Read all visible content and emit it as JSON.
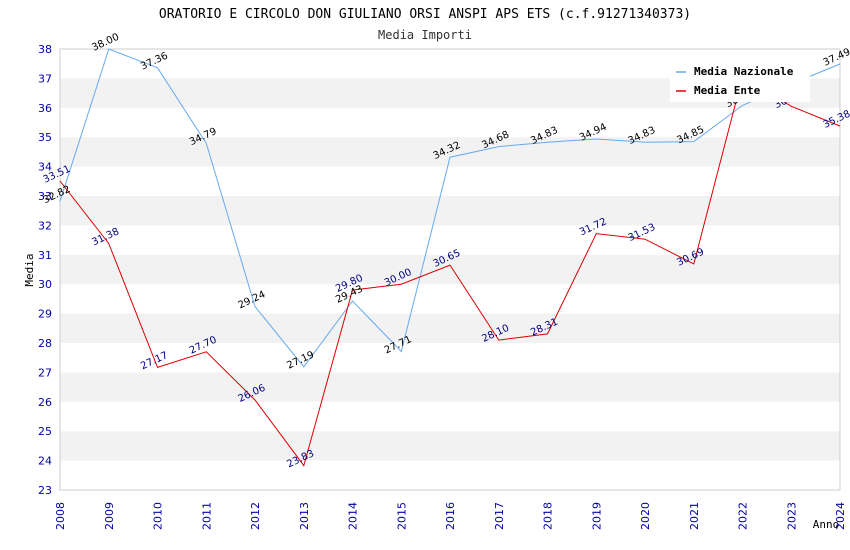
{
  "chart_data": {
    "type": "line",
    "title": "ORATORIO E CIRCOLO DON GIULIANO ORSI ANSPI APS ETS (c.f.91271340373)",
    "subtitle": "Media Importi",
    "xlabel": "Anno",
    "ylabel": "Media",
    "ylim": [
      23,
      38
    ],
    "yticks": [
      "23",
      "24",
      "25",
      "26",
      "27",
      "28",
      "29",
      "30",
      "31",
      "32",
      "33",
      "34",
      "35",
      "36",
      "37",
      "38"
    ],
    "x": [
      "2008",
      "2009",
      "2010",
      "2011",
      "2012",
      "2013",
      "2014",
      "2015",
      "2016",
      "2017",
      "2018",
      "2019",
      "2020",
      "2021",
      "2022",
      "2023",
      "2024"
    ],
    "grid": "horizontal alternating bands",
    "legend_position": "top-right",
    "series": [
      {
        "name": "Media Nazionale",
        "color": "#66aaee",
        "values": [
          32.82,
          38.0,
          37.36,
          34.79,
          29.24,
          27.19,
          29.43,
          27.71,
          34.32,
          34.68,
          34.83,
          34.94,
          34.83,
          34.85,
          36.08,
          36.81,
          37.49
        ],
        "labels": [
          "32.82",
          "38.00",
          "37.36",
          "34.79",
          "29.24",
          "27.19",
          "29.43",
          "27.71",
          "34.32",
          "34.68",
          "34.83",
          "34.94",
          "34.83",
          "34.85",
          "36.08",
          "36.81",
          "37.49"
        ]
      },
      {
        "name": "Media Ente",
        "color": "#dd0000",
        "values": [
          33.51,
          31.38,
          27.17,
          27.7,
          26.06,
          23.83,
          29.8,
          30.0,
          30.65,
          28.1,
          28.31,
          31.72,
          31.53,
          30.69,
          37.06,
          36.05,
          35.38
        ],
        "labels": [
          "33.51",
          "31.38",
          "27.17",
          "27.70",
          "26.06",
          "23.83",
          "29.80",
          "30.00",
          "30.65",
          "28.10",
          "28.31",
          "31.72",
          "31.53",
          "30.69",
          "37.06",
          "36.05",
          "35.38"
        ]
      }
    ]
  }
}
